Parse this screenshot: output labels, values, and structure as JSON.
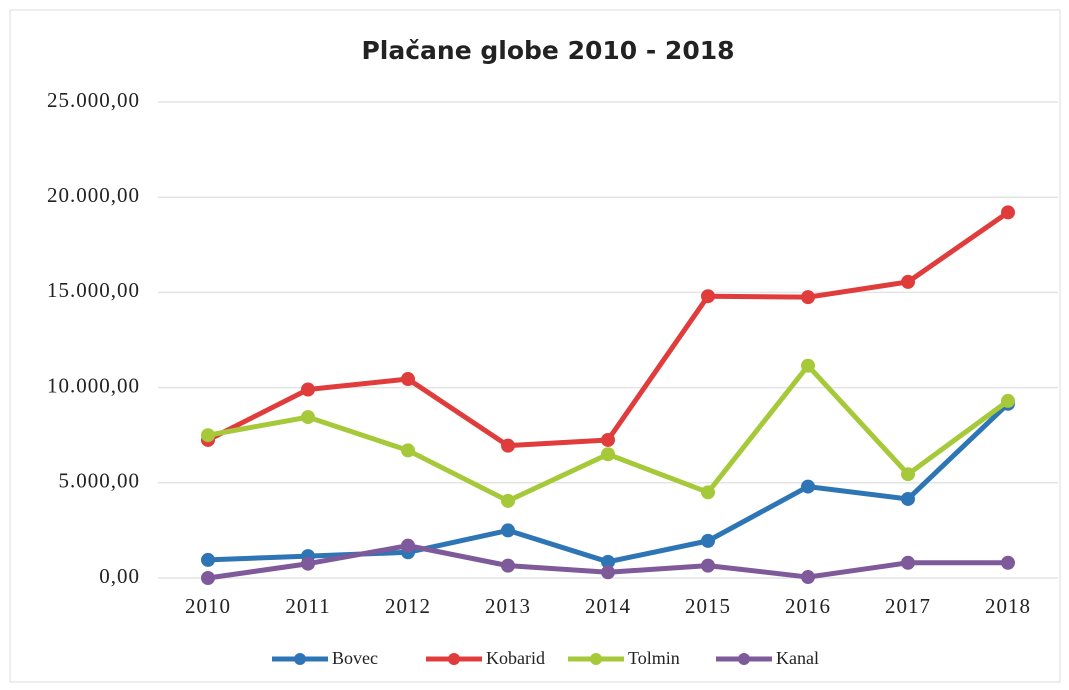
{
  "chart_data": {
    "type": "line",
    "title": "Plačane globe 2010 - 2018",
    "categories": [
      "2010",
      "2011",
      "2012",
      "2013",
      "2014",
      "2015",
      "2016",
      "2017",
      "2018"
    ],
    "series": [
      {
        "name": "Bovec",
        "color": "#2e75b6",
        "values": [
          950,
          1150,
          1350,
          2500,
          850,
          1950,
          4800,
          4150,
          9150
        ]
      },
      {
        "name": "Kobarid",
        "color": "#e03c3c",
        "values": [
          7250,
          9900,
          10450,
          6950,
          7250,
          14800,
          14750,
          15550,
          19200
        ]
      },
      {
        "name": "Tolmin",
        "color": "#a6c93a",
        "values": [
          7500,
          8450,
          6700,
          4050,
          6500,
          4500,
          11150,
          5450,
          9300
        ]
      },
      {
        "name": "Kanal",
        "color": "#7e5a9b",
        "values": [
          0,
          750,
          1700,
          650,
          300,
          650,
          50,
          800,
          800
        ]
      }
    ],
    "ylim": [
      0,
      25000
    ],
    "yticks": [
      {
        "value": 0,
        "label": "0,00"
      },
      {
        "value": 5000,
        "label": "5.000,00"
      },
      {
        "value": 10000,
        "label": "10.000,00"
      },
      {
        "value": 15000,
        "label": "15.000,00"
      },
      {
        "value": 20000,
        "label": "20.000,00"
      },
      {
        "value": 25000,
        "label": "25.000,00"
      }
    ],
    "grid": true,
    "legend": "bottom"
  }
}
